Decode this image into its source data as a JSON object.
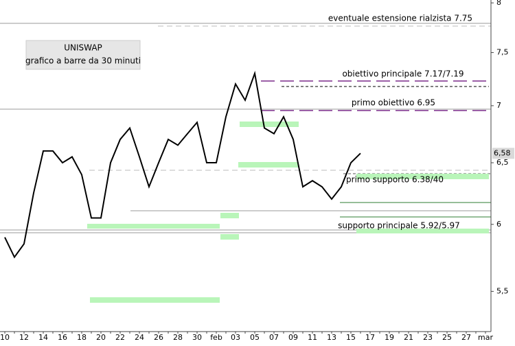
{
  "chart_data": {
    "type": "line",
    "title": "UNISWAP",
    "subtitle": "grafico a barre da 30 minuti",
    "categories": [
      "10",
      null,
      "12",
      null,
      "14",
      null,
      "16",
      null,
      "18",
      null,
      "20",
      null,
      "22",
      null,
      "24",
      null,
      "26",
      null,
      "28",
      null,
      "30",
      null,
      "feb",
      null,
      "03",
      null,
      "05",
      null,
      "07",
      null,
      "09",
      null,
      "11",
      null,
      "13",
      null,
      "15",
      null,
      "17",
      null,
      "19",
      null,
      "21",
      null,
      "23",
      null,
      "25",
      null,
      "27",
      null,
      "mar"
    ],
    "series": [
      {
        "name": "UNISWAP",
        "color": "#000000",
        "values": [
          5.9,
          5.75,
          5.85,
          6.25,
          6.6,
          6.6,
          6.5,
          6.55,
          6.4,
          6.05,
          6.05,
          6.5,
          6.7,
          6.8,
          6.55,
          6.3,
          6.5,
          6.7,
          6.65,
          6.75,
          6.85,
          6.5,
          6.5,
          6.9,
          7.2,
          7.05,
          7.3,
          6.8,
          6.75,
          6.9,
          6.7,
          6.3,
          6.35,
          6.3,
          6.2,
          6.3,
          6.5,
          6.58,
          null,
          null,
          null,
          null,
          null,
          null,
          null,
          null,
          null,
          null,
          null,
          null,
          null
        ]
      }
    ],
    "ylim": [
      5.22,
      8.03
    ],
    "log_scale": true,
    "yticks": [
      {
        "value": 5.5,
        "label": "5,5"
      },
      6,
      {
        "value": 6.5,
        "label": "6,5"
      },
      7,
      {
        "value": 7.5,
        "label": "7,5"
      },
      8
    ],
    "last_price": {
      "value": 6.58,
      "label": "6,58"
    },
    "annotations": [
      {
        "text": "eventuale estensione rialzista 7.75"
      },
      {
        "text": "obiettivo principale 7.17/7.19"
      },
      {
        "text": "primo obiettivo 6.95"
      },
      {
        "text": "primo supporto 6.38/40"
      },
      {
        "text": "supporto principale 5.92/5.97"
      }
    ]
  }
}
